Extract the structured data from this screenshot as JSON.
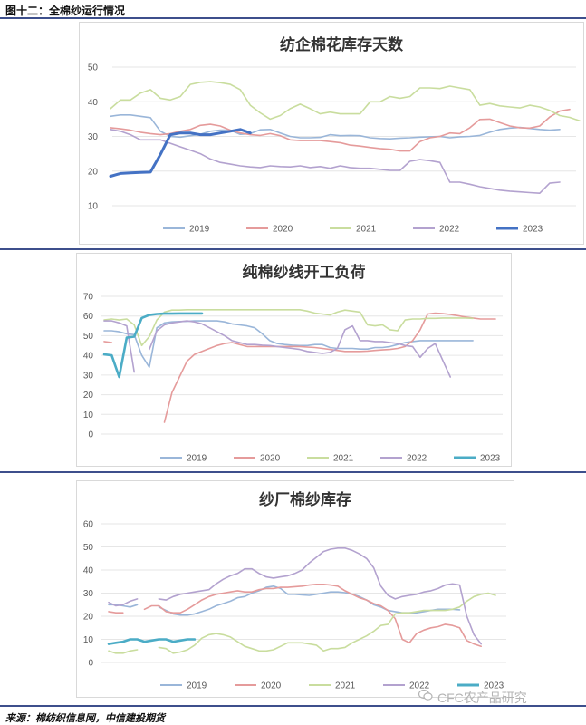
{
  "figure_title": "图十二：全棉纱运行情况",
  "source": "来源：棉纺织信息网，中信建投期货",
  "watermark": "CFC农产品研究",
  "colors": {
    "2019": "#9ab6d9",
    "2020": "#e59b9b",
    "2021": "#c9dd9e",
    "2022": "#b3a2cf",
    "2023_panel1": "#4472c4",
    "2023_panel2": "#4bacc6",
    "2023_panel3": "#4bacc6"
  },
  "chart_data": [
    {
      "type": "line",
      "title": "纺企棉花库存天数",
      "ylim": [
        10,
        50
      ],
      "yticks": [
        10,
        20,
        30,
        40,
        50
      ],
      "xlabel": "",
      "ylabel": "",
      "x": "index",
      "series": [
        {
          "name": "2019",
          "values": [
            35.8,
            36.2,
            36.2,
            35.8,
            35.4,
            31.5,
            30.0,
            29.8,
            30.2,
            30.6,
            31.5,
            31.8,
            31.8,
            30.6,
            30.8,
            31.9,
            32.0,
            31.0,
            30.0,
            29.6,
            29.6,
            29.7,
            30.5,
            30.2,
            30.3,
            30.2,
            29.6,
            29.4,
            29.3,
            29.5,
            29.6,
            29.8,
            29.9,
            30.0,
            29.6,
            29.9,
            30.0,
            30.3,
            31.2,
            32.0,
            32.4,
            32.6,
            32.3,
            32.0,
            31.8,
            32.0
          ]
        },
        {
          "name": "2020",
          "values": [
            32.5,
            32.2,
            31.8,
            31.2,
            30.8,
            30.5,
            30.8,
            31.5,
            32.0,
            33.2,
            33.5,
            33.0,
            31.8,
            31.0,
            30.5,
            30.3,
            30.8,
            30.2,
            29.0,
            28.8,
            28.8,
            28.8,
            28.5,
            28.2,
            27.5,
            27.2,
            26.8,
            26.5,
            26.3,
            25.8,
            25.8,
            28.5,
            29.6,
            30.0,
            31.0,
            30.8,
            32.5,
            34.9,
            35.0,
            34.0,
            33.0,
            32.5,
            32.4,
            33.0,
            35.6,
            37.3,
            37.8
          ]
        },
        {
          "name": "2021",
          "values": [
            38.0,
            40.5,
            40.5,
            42.5,
            43.5,
            41.0,
            40.5,
            41.5,
            45.0,
            45.6,
            45.8,
            45.5,
            45.0,
            43.5,
            39.0,
            36.8,
            35.0,
            36.0,
            38.0,
            39.3,
            38.0,
            36.5,
            37.0,
            36.5,
            36.5,
            36.5,
            40.0,
            40.0,
            41.5,
            41.0,
            41.5,
            44.0,
            44.0,
            43.8,
            44.5,
            44.0,
            43.5,
            39.0,
            39.5,
            38.8,
            38.5,
            38.2,
            39.0,
            38.5,
            37.5,
            36.0,
            35.5,
            34.5
          ]
        },
        {
          "name": "2022",
          "values": [
            32.0,
            31.5,
            30.5,
            29.0,
            29.0,
            29.0,
            28.0,
            27.0,
            26.0,
            25.0,
            23.5,
            22.5,
            22.0,
            21.5,
            21.2,
            21.0,
            21.5,
            21.3,
            21.2,
            21.5,
            21.0,
            21.3,
            20.8,
            21.5,
            21.0,
            20.8,
            20.8,
            20.5,
            20.2,
            20.2,
            22.8,
            23.3,
            23.0,
            22.5,
            16.8,
            16.8,
            16.2,
            15.5,
            15.0,
            14.5,
            14.2,
            14.0,
            13.8,
            13.6,
            16.5,
            16.8
          ]
        },
        {
          "name": "2023",
          "values": [
            18.5,
            19.3,
            19.5,
            19.6,
            19.7,
            24.8,
            30.5,
            31.0,
            31.0,
            30.5,
            30.5,
            31.0,
            31.5,
            32.0,
            31.0
          ]
        }
      ]
    },
    {
      "type": "line",
      "title": "纯棉纱线开工负荷",
      "ylim": [
        0,
        70
      ],
      "yticks": [
        0,
        10,
        20,
        30,
        40,
        50,
        60,
        70
      ],
      "xlabel": "",
      "ylabel": "",
      "x": "index",
      "series": [
        {
          "name": "2019",
          "values": [
            52.5,
            52.5,
            52.0,
            51.0,
            50.5,
            40.0,
            34.0,
            54.0,
            56.5,
            57.0,
            57.2,
            57.3,
            57.5,
            57.5,
            57.5,
            57.5,
            57.0,
            56.0,
            55.5,
            55.0,
            54.0,
            51.0,
            47.5,
            46.0,
            45.5,
            45.2,
            45.0,
            45.0,
            45.5,
            45.5,
            44.0,
            43.5,
            43.5,
            43.5,
            43.2,
            43.2,
            44.0,
            44.0,
            44.5,
            45.5,
            46.5,
            47.0,
            47.5,
            47.5,
            47.5,
            47.5,
            47.5,
            47.5,
            47.5,
            47.5
          ]
        },
        {
          "name": "2020",
          "values": [
            47.0,
            46.5,
            null,
            null,
            null,
            null,
            null,
            null,
            6.0,
            21.0,
            29.0,
            37.0,
            40.5,
            42.0,
            43.5,
            45.0,
            46.0,
            46.5,
            45.5,
            44.5,
            44.5,
            44.5,
            44.5,
            44.5,
            44.5,
            44.5,
            44.5,
            44.2,
            44.0,
            43.5,
            43.0,
            42.5,
            42.0,
            42.0,
            42.0,
            42.2,
            42.5,
            42.8,
            43.0,
            43.5,
            44.5,
            47.5,
            53.0,
            61.0,
            61.5,
            61.2,
            60.8,
            60.2,
            59.5,
            59.0,
            58.5,
            58.5,
            58.5
          ]
        },
        {
          "name": "2021",
          "values": [
            58.0,
            58.5,
            58.0,
            58.5,
            55.5,
            45.0,
            49.5,
            58.0,
            62.0,
            63.0,
            63.0,
            63.2,
            63.2,
            63.2,
            63.2,
            63.2,
            63.2,
            63.2,
            63.2,
            63.2,
            63.2,
            63.2,
            63.2,
            63.2,
            63.2,
            63.2,
            63.2,
            62.5,
            61.5,
            61.0,
            60.5,
            62.0,
            63.0,
            62.5,
            62.0,
            55.5,
            55.0,
            55.5,
            53.0,
            52.5,
            58.0,
            58.5,
            58.5,
            58.8,
            58.8,
            59.0,
            59.0,
            59.0,
            59.0,
            58.8
          ]
        },
        {
          "name": "2022",
          "values": [
            57.5,
            57.5,
            56.5,
            55.0,
            31.5,
            null,
            43.0,
            52.5,
            55.5,
            56.5,
            57.0,
            57.5,
            57.0,
            56.0,
            54.0,
            52.0,
            50.0,
            47.5,
            46.5,
            45.5,
            45.5,
            45.2,
            45.0,
            44.5,
            44.0,
            43.5,
            43.0,
            42.0,
            41.5,
            41.0,
            41.5,
            43.5,
            53.0,
            55.0,
            47.5,
            47.5,
            47.0,
            47.0,
            46.5,
            46.0,
            45.0,
            44.5,
            39.0,
            43.5,
            46.0,
            37.5,
            29.0
          ]
        },
        {
          "name": "2023",
          "values": [
            40.5,
            40.0,
            29.0,
            49.0,
            49.5,
            59.0,
            60.5,
            61.0,
            61.2,
            61.2,
            61.3,
            61.3,
            61.3,
            61.3
          ]
        }
      ]
    },
    {
      "type": "line",
      "title": "纱厂棉纱库存",
      "ylim": [
        0,
        60
      ],
      "yticks": [
        0,
        10,
        20,
        30,
        40,
        50,
        60
      ],
      "xlabel": "",
      "ylabel": "",
      "x": "index",
      "series": [
        {
          "name": "2019",
          "values": [
            25.0,
            25.0,
            24.5,
            24.0,
            25.0,
            null,
            null,
            24.0,
            22.5,
            21.0,
            20.5,
            20.5,
            21.0,
            22.0,
            23.0,
            24.5,
            25.5,
            26.5,
            28.0,
            28.5,
            30.0,
            31.0,
            32.5,
            33.0,
            32.0,
            29.5,
            29.5,
            29.2,
            29.0,
            29.5,
            30.0,
            30.5,
            30.5,
            30.2,
            29.5,
            28.5,
            27.0,
            25.0,
            24.0,
            22.5,
            22.0,
            21.5,
            21.5,
            21.5,
            22.0,
            22.5,
            23.0,
            23.0,
            23.0,
            22.8
          ]
        },
        {
          "name": "2020",
          "values": [
            22.0,
            21.5,
            21.5,
            null,
            null,
            23.0,
            24.5,
            24.5,
            22.0,
            21.5,
            21.5,
            23.0,
            25.0,
            27.0,
            28.5,
            29.5,
            30.0,
            30.5,
            31.0,
            30.5,
            30.5,
            31.5,
            32.0,
            32.0,
            32.5,
            32.5,
            32.8,
            33.0,
            33.5,
            33.8,
            33.8,
            33.5,
            33.0,
            31.0,
            29.5,
            28.0,
            27.0,
            25.5,
            24.5,
            22.5,
            19.0,
            10.0,
            8.5,
            12.5,
            14.0,
            15.0,
            15.5,
            16.5,
            16.0,
            15.0,
            9.5,
            8.0,
            7.0
          ]
        },
        {
          "name": "2021",
          "values": [
            5.0,
            4.0,
            4.0,
            5.0,
            5.5,
            null,
            null,
            6.5,
            6.0,
            4.0,
            4.5,
            5.5,
            7.5,
            10.5,
            12.0,
            12.5,
            12.0,
            11.0,
            9.0,
            7.0,
            6.0,
            5.0,
            5.0,
            5.5,
            7.0,
            8.5,
            8.5,
            8.5,
            8.0,
            7.5,
            5.0,
            6.0,
            6.0,
            6.5,
            8.5,
            10.0,
            11.5,
            13.5,
            16.0,
            16.5,
            21.0,
            21.5,
            21.5,
            22.0,
            22.5,
            22.5,
            22.5,
            22.5,
            23.0,
            24.0,
            26.5,
            28.5,
            29.5,
            30.0,
            29.0
          ]
        },
        {
          "name": "2022",
          "values": [
            26.0,
            24.5,
            25.0,
            26.5,
            27.5,
            null,
            null,
            27.5,
            27.0,
            28.5,
            29.5,
            30.0,
            30.5,
            31.0,
            31.5,
            34.0,
            36.0,
            37.5,
            38.5,
            40.5,
            40.5,
            38.5,
            37.0,
            36.5,
            37.0,
            37.5,
            38.5,
            40.0,
            43.0,
            45.5,
            48.0,
            49.0,
            49.5,
            49.5,
            48.5,
            47.0,
            45.0,
            41.0,
            33.0,
            29.0,
            27.5,
            28.5,
            29.0,
            29.5,
            30.5,
            31.0,
            32.0,
            33.5,
            34.0,
            33.5,
            20.0,
            12.0,
            8.0
          ]
        },
        {
          "name": "2023",
          "values": [
            8.0,
            8.5,
            9.0,
            10.0,
            10.0,
            9.0,
            9.5,
            10.0,
            10.0,
            9.0,
            9.5,
            10.0,
            10.0
          ]
        }
      ]
    }
  ]
}
